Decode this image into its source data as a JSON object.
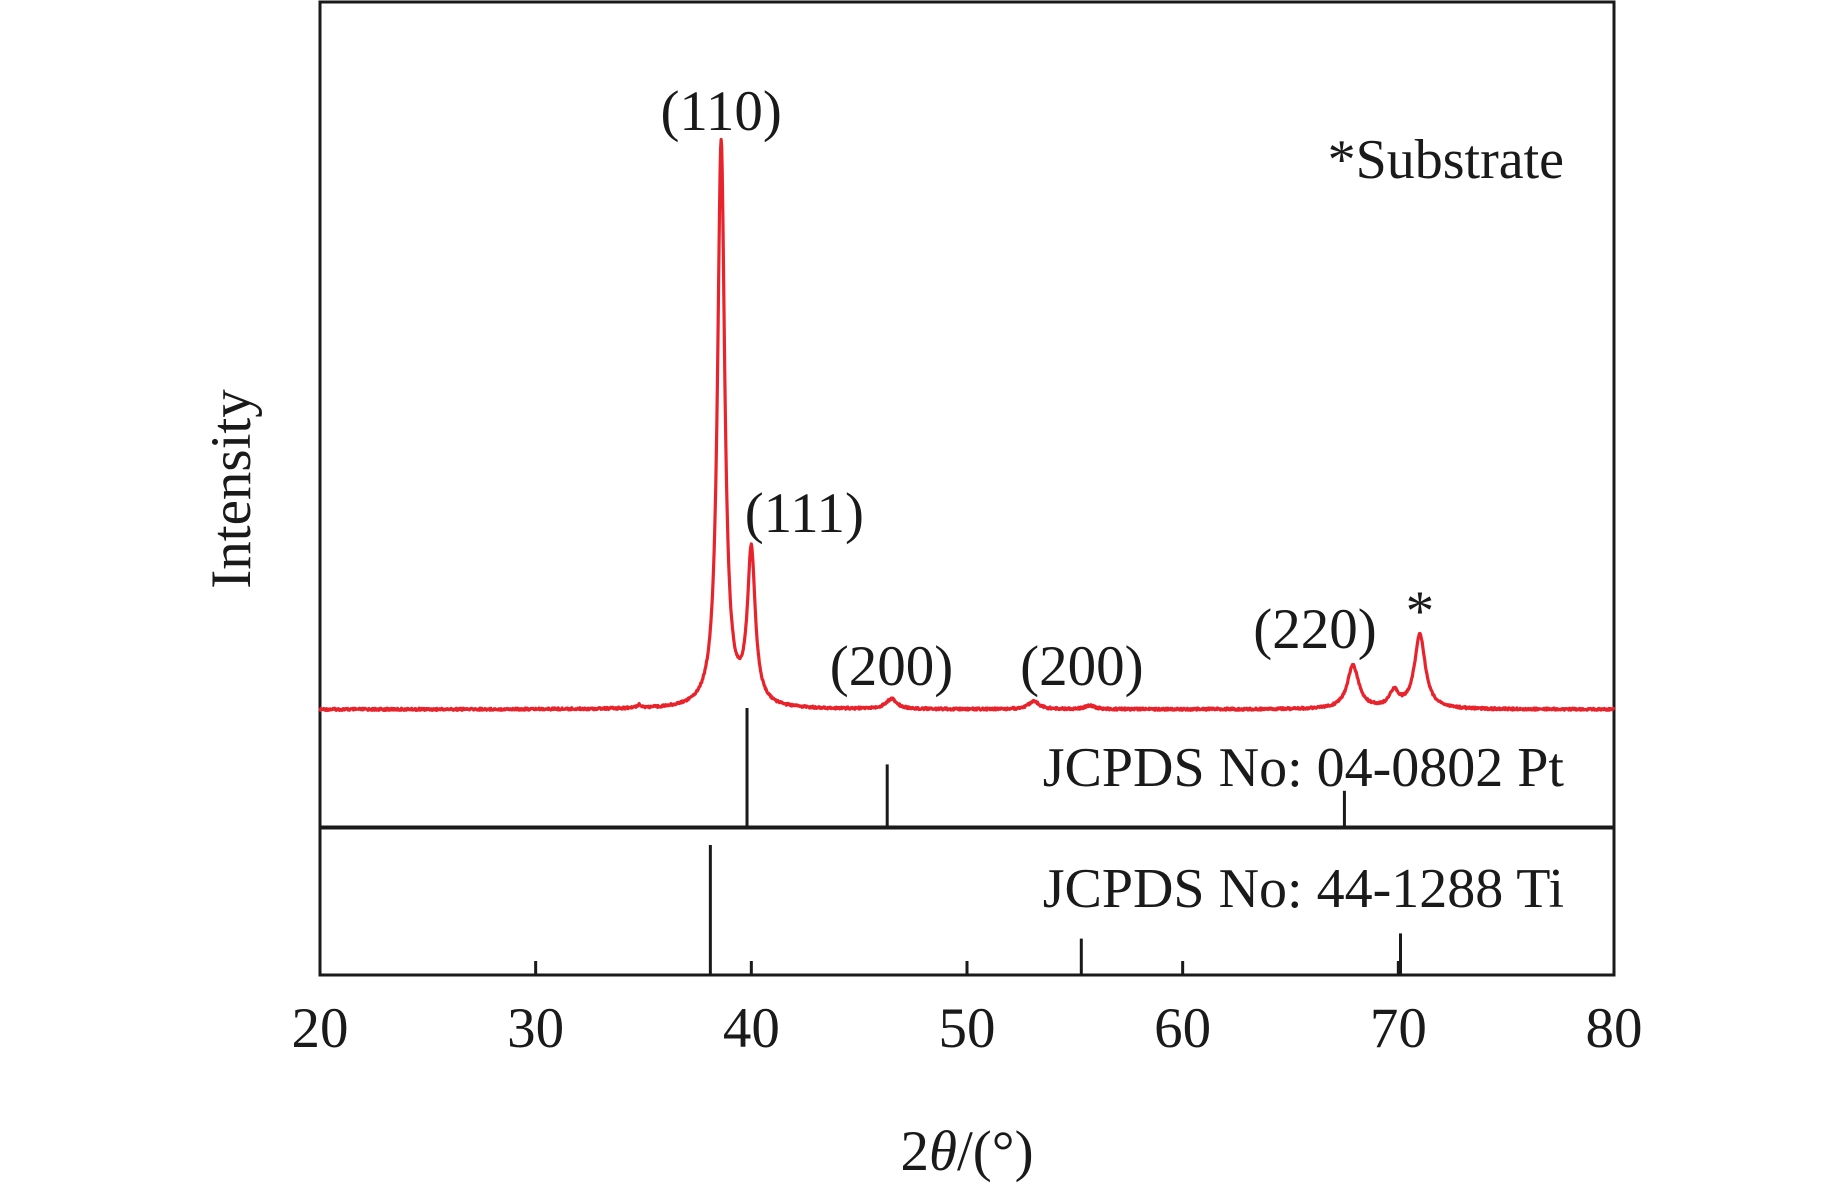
{
  "chart_data": {
    "type": "line",
    "xlabel_prefix": "2",
    "xlabel_var": "θ",
    "xlabel_suffix": "/(°)",
    "ylabel": "Intensity",
    "xlim": [
      20,
      80
    ],
    "x_ticks": [
      20,
      30,
      40,
      50,
      60,
      70,
      80
    ],
    "y_ticks_shown": false,
    "grid": false,
    "series": [
      {
        "color": "#e8232b",
        "baseline": 0.1,
        "peaks": [
          {
            "x": 34.8,
            "height": 0.6,
            "width": 0.12
          },
          {
            "x": 38.6,
            "height": 100,
            "width": 0.2
          },
          {
            "x": 40.0,
            "height": 27,
            "width": 0.22
          },
          {
            "x": 46.5,
            "height": 1.8,
            "width": 0.3
          },
          {
            "x": 53.1,
            "height": 1.4,
            "width": 0.3
          },
          {
            "x": 55.7,
            "height": 0.6,
            "width": 0.3
          },
          {
            "x": 67.9,
            "height": 7.6,
            "width": 0.32
          },
          {
            "x": 69.8,
            "height": 2.8,
            "width": 0.26
          },
          {
            "x": 71.0,
            "height": 13.1,
            "width": 0.3
          }
        ]
      }
    ],
    "peak_annotations": [
      {
        "text": "(110)",
        "x": 38.6
      },
      {
        "text": "(111)",
        "x": 40.0
      },
      {
        "text": "(200)",
        "x": 46.5
      },
      {
        "text": "(200)",
        "x": 53.1
      },
      {
        "text": "(220)",
        "x": 67.9
      },
      {
        "text": "*",
        "x": 71.0
      }
    ],
    "substrate_note": "*Substrate",
    "reference_patterns": [
      {
        "label": "JCPDS No: 04-0802 Pt",
        "lines": [
          {
            "x": 39.8,
            "intensity": 100
          },
          {
            "x": 46.3,
            "intensity": 53
          },
          {
            "x": 67.5,
            "intensity": 31
          }
        ]
      },
      {
        "label": "JCPDS No: 44-1288 Ti",
        "lines": [
          {
            "x": 38.1,
            "intensity": 100
          },
          {
            "x": 55.3,
            "intensity": 28
          },
          {
            "x": 70.1,
            "intensity": 32
          }
        ]
      }
    ]
  }
}
